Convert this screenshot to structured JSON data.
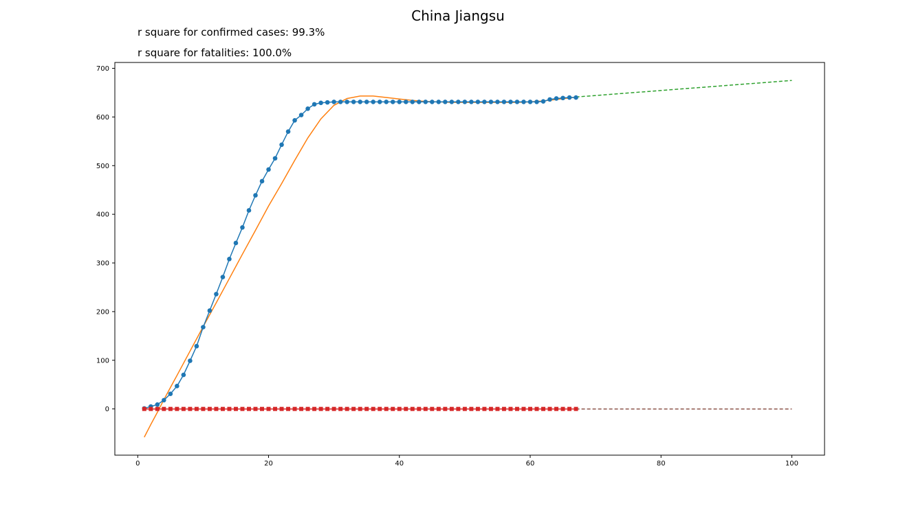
{
  "figure": {
    "title": "China Jiangsu",
    "r2_confirmed_text": "r square for confirmed cases: 99.3%",
    "r2_fatalities_text": "r square for fatalities: 100.0%"
  },
  "colors": {
    "confirmed": "#1f77b4",
    "confirmed_fit": "#ff7f0e",
    "confirmed_forecast": "#2ca02c",
    "fatalities": "#d62728",
    "fatalities_fit": "#9467bd",
    "fatalities_forecast": "#8c564b"
  },
  "chart_data": {
    "type": "line",
    "title": "China Jiangsu",
    "xlim": [
      -3.5,
      105
    ],
    "ylim": [
      -95,
      712
    ],
    "x_ticks": [
      0,
      20,
      40,
      60,
      80,
      100
    ],
    "y_ticks": [
      0,
      100,
      200,
      300,
      400,
      500,
      600,
      700
    ],
    "grid": false,
    "series": [
      {
        "key": "confirmed",
        "style": "line+circle-markers",
        "x": [
          1,
          2,
          3,
          4,
          5,
          6,
          7,
          8,
          9,
          10,
          11,
          12,
          13,
          14,
          15,
          16,
          17,
          18,
          19,
          20,
          21,
          22,
          23,
          24,
          25,
          26,
          27,
          28,
          29,
          30,
          31,
          32,
          33,
          34,
          35,
          36,
          37,
          38,
          39,
          40,
          41,
          42,
          43,
          44,
          45,
          46,
          47,
          48,
          49,
          50,
          51,
          52,
          53,
          54,
          55,
          56,
          57,
          58,
          59,
          60,
          61,
          62,
          63,
          64,
          65,
          66,
          67
        ],
        "y": [
          1,
          5,
          9,
          18,
          31,
          47,
          70,
          99,
          129,
          168,
          202,
          236,
          271,
          308,
          341,
          373,
          408,
          439,
          468,
          492,
          515,
          543,
          570,
          593,
          604,
          617,
          626,
          629,
          630,
          631,
          631,
          631,
          631,
          631,
          631,
          631,
          631,
          631,
          631,
          631,
          631,
          631,
          631,
          631,
          631,
          631,
          631,
          631,
          631,
          631,
          631,
          631,
          631,
          631,
          631,
          631,
          631,
          631,
          631,
          631,
          631,
          632,
          636,
          638,
          639,
          640,
          640
        ]
      },
      {
        "key": "confirmed_fit",
        "style": "solid-line",
        "x": [
          1,
          2,
          3,
          4,
          5,
          6,
          8,
          10,
          12,
          14,
          16,
          18,
          20,
          22,
          24,
          26,
          28,
          30,
          32,
          34,
          36,
          38,
          40,
          42,
          44,
          46,
          48,
          50,
          52,
          54,
          56,
          58,
          60,
          62,
          64,
          66,
          67
        ],
        "y": [
          -58,
          -32,
          -7,
          19,
          44,
          69,
          119,
          169,
          218,
          268,
          318,
          367,
          417,
          463,
          511,
          557,
          596,
          624,
          638,
          643,
          643,
          640,
          637,
          634,
          632,
          631,
          630,
          630,
          630,
          630,
          630,
          630,
          631,
          633,
          636,
          639,
          641
        ]
      },
      {
        "key": "confirmed_forecast",
        "style": "dashed-line",
        "x": [
          67,
          100
        ],
        "y": [
          641,
          675
        ]
      },
      {
        "key": "fatalities",
        "style": "line+square-markers",
        "x": [
          1,
          2,
          3,
          4,
          5,
          6,
          7,
          8,
          9,
          10,
          11,
          12,
          13,
          14,
          15,
          16,
          17,
          18,
          19,
          20,
          21,
          22,
          23,
          24,
          25,
          26,
          27,
          28,
          29,
          30,
          31,
          32,
          33,
          34,
          35,
          36,
          37,
          38,
          39,
          40,
          41,
          42,
          43,
          44,
          45,
          46,
          47,
          48,
          49,
          50,
          51,
          52,
          53,
          54,
          55,
          56,
          57,
          58,
          59,
          60,
          61,
          62,
          63,
          64,
          65,
          66,
          67
        ],
        "y": [
          0,
          0,
          0,
          0,
          0,
          0,
          0,
          0,
          0,
          0,
          0,
          0,
          0,
          0,
          0,
          0,
          0,
          0,
          0,
          0,
          0,
          0,
          0,
          0,
          0,
          0,
          0,
          0,
          0,
          0,
          0,
          0,
          0,
          0,
          0,
          0,
          0,
          0,
          0,
          0,
          0,
          0,
          0,
          0,
          0,
          0,
          0,
          0,
          0,
          0,
          0,
          0,
          0,
          0,
          0,
          0,
          0,
          0,
          0,
          0,
          0,
          0,
          0,
          0,
          0,
          0,
          0
        ]
      },
      {
        "key": "fatalities_fit",
        "style": "solid-line",
        "x": [
          1,
          67
        ],
        "y": [
          0,
          0
        ]
      },
      {
        "key": "fatalities_forecast",
        "style": "dashed-line",
        "x": [
          67,
          100
        ],
        "y": [
          0,
          0
        ]
      }
    ]
  }
}
